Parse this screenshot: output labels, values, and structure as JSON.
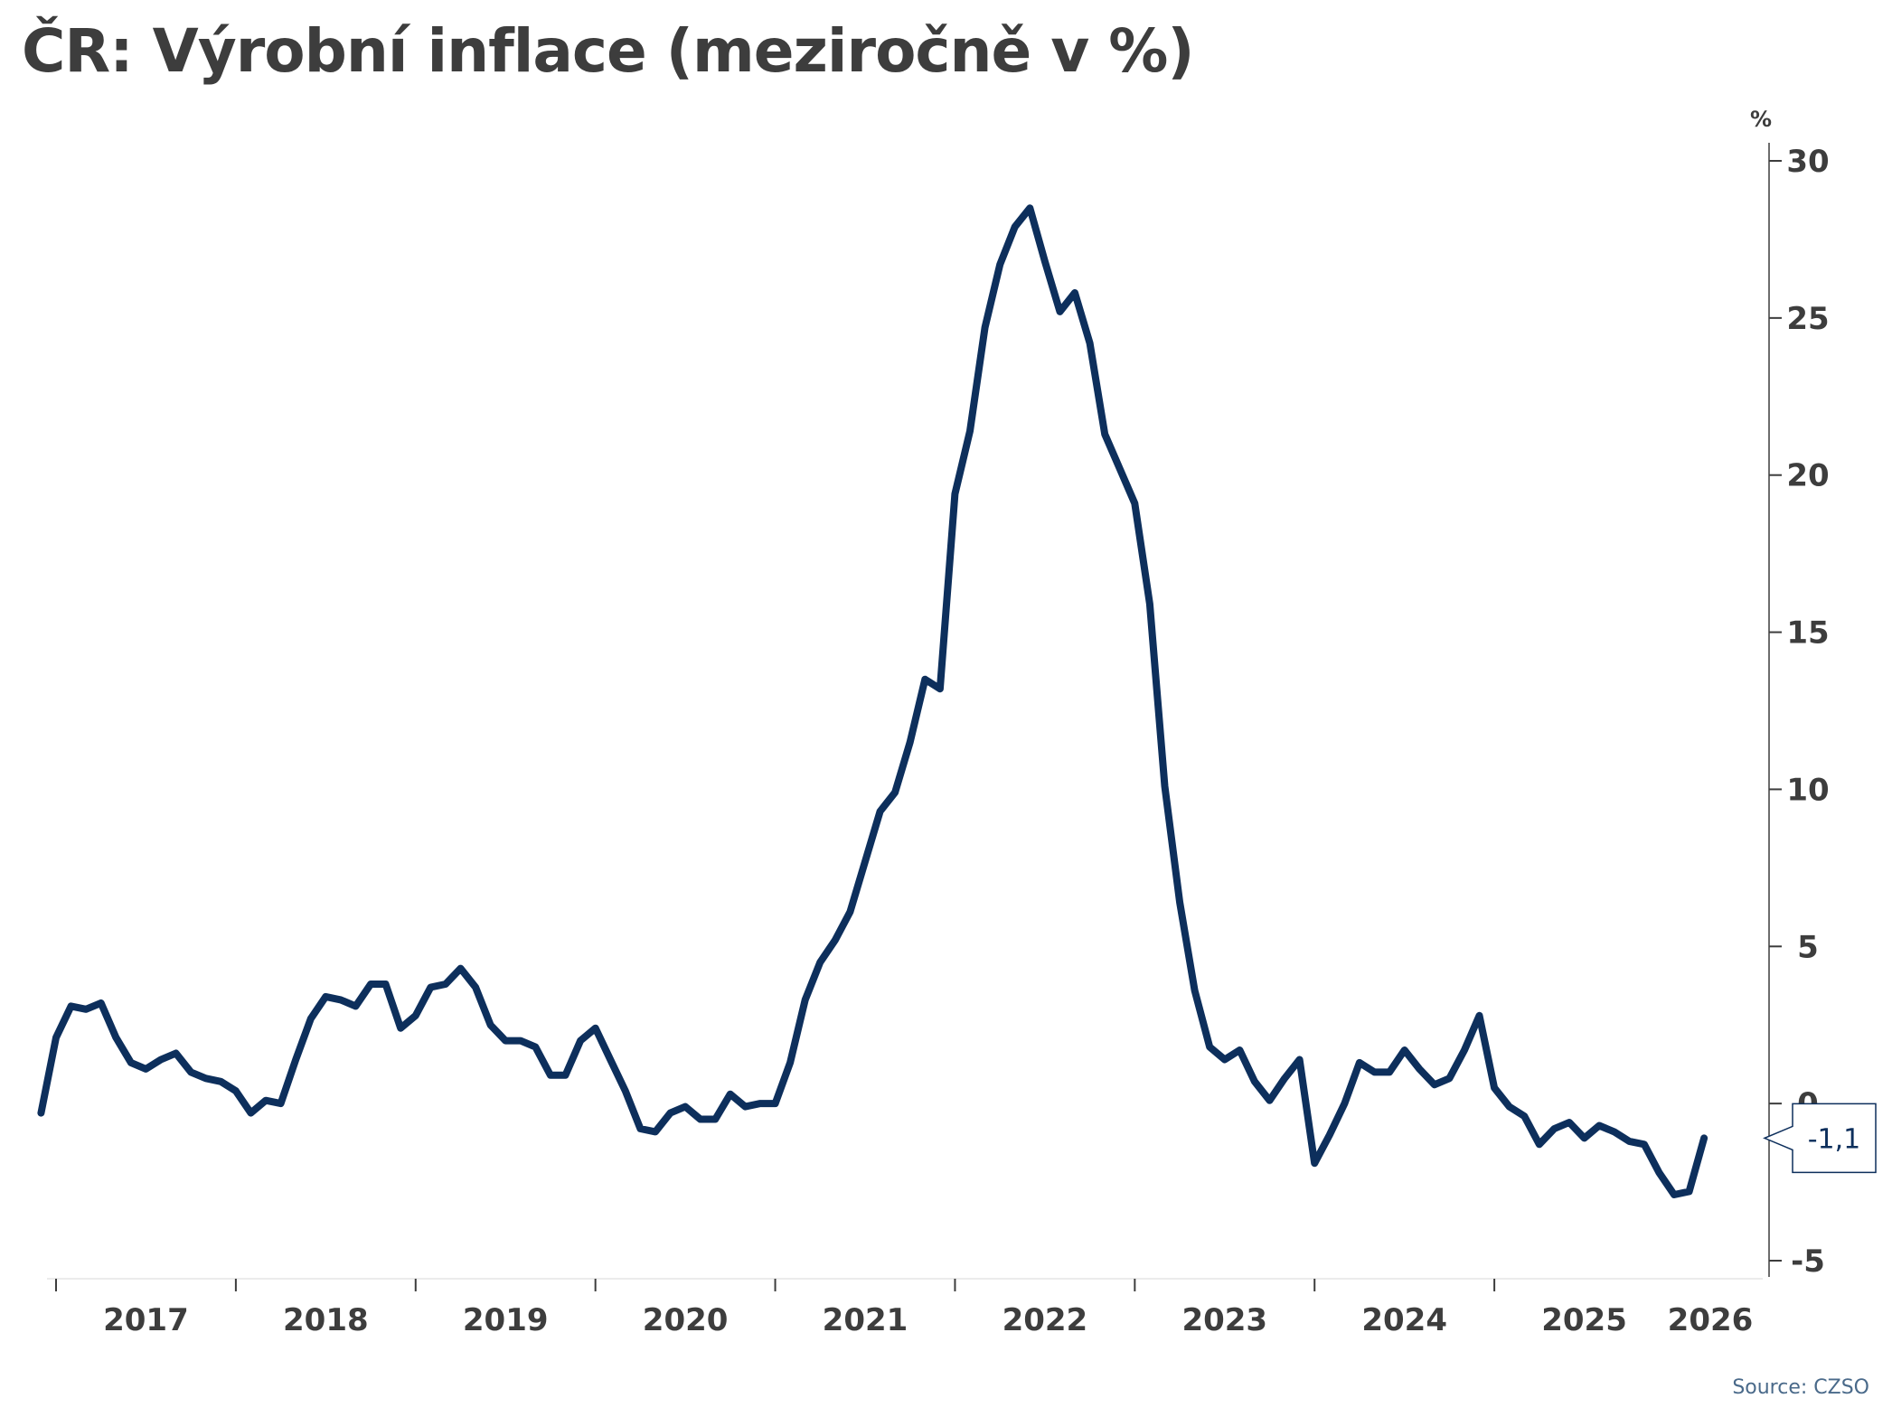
{
  "title": "ČR: Výrobní inflace (meziročně v %)",
  "source": "Source: CZSO",
  "colors": {
    "line": "#0d2f5c",
    "axis": "#3d3d3d",
    "background": "#ffffff"
  },
  "chart_data": {
    "type": "line",
    "title": "ČR: Výrobní inflace (meziročně v %)",
    "xlabel": "",
    "ylabel": "%",
    "ylim": [
      -5,
      30
    ],
    "yticks": [
      30,
      25,
      20,
      15,
      10,
      5,
      0,
      -5
    ],
    "ytick_labels": [
      "30",
      "25",
      "20",
      "15",
      "10",
      "5",
      "0",
      "-5"
    ],
    "xticks": [
      "2017",
      "2018",
      "2019",
      "2020",
      "2021",
      "2022",
      "2023",
      "2024",
      "2025",
      "2026"
    ],
    "x_start": "2016-12",
    "x_end": "2026-01",
    "grid": false,
    "legend": "none",
    "y_axis_side": "right",
    "last_value_label": "-1,1",
    "series": [
      {
        "values": [
          -0.3,
          2.1,
          3.1,
          3.0,
          3.2,
          2.1,
          1.3,
          1.1,
          1.4,
          1.6,
          1.0,
          0.8,
          0.7,
          0.4,
          -0.3,
          0.1,
          0.0,
          1.4,
          2.7,
          3.4,
          3.3,
          3.1,
          3.8,
          3.8,
          2.4,
          2.8,
          3.7,
          3.8,
          4.3,
          3.7,
          2.5,
          2.0,
          2.0,
          1.8,
          0.9,
          0.9,
          2.0,
          2.4,
          1.4,
          0.4,
          -0.8,
          -0.9,
          -0.3,
          -0.1,
          -0.5,
          -0.5,
          0.3,
          -0.1,
          0.0,
          0.0,
          1.3,
          3.3,
          4.5,
          5.2,
          6.1,
          7.7,
          9.3,
          9.9,
          11.5,
          13.5,
          13.2,
          19.4,
          21.4,
          24.7,
          26.7,
          27.9,
          28.5,
          26.8,
          25.2,
          25.8,
          24.2,
          21.3,
          20.2,
          19.1,
          15.9,
          10.1,
          6.4,
          3.6,
          1.8,
          1.4,
          1.7,
          0.7,
          0.1,
          0.8,
          1.4,
          -1.9,
          -1.0,
          0.0,
          1.3,
          1.0,
          1.0,
          1.7,
          1.1,
          0.6,
          0.8,
          1.7,
          2.8,
          0.5,
          -0.1,
          -0.4,
          -1.3,
          -0.8,
          -0.6,
          -1.1,
          -0.7,
          -0.9,
          -1.2,
          -1.3,
          -2.2,
          -2.9,
          -2.8,
          -1.1
        ]
      }
    ]
  }
}
